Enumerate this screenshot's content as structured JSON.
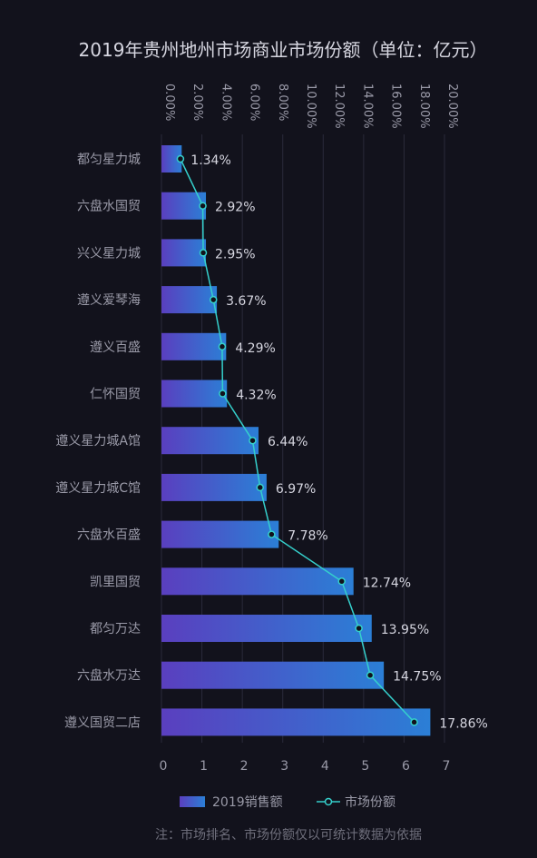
{
  "chart_data": {
    "type": "bar",
    "title": "2019年贵州地州市场商业市场份额（单位：亿元）",
    "note": "注：市场排名、市场份额仅以可统计数据为依据",
    "categories": [
      "都匀星力城",
      "六盘水国贸",
      "兴义星力城",
      "遵义爱琴海",
      "遵义百盛",
      "仁怀国贸",
      "遵义星力城A馆",
      "遵义星力城C馆",
      "六盘水百盛",
      "凯里国贸",
      "都匀万达",
      "六盘水万达",
      "遵义国贸二店"
    ],
    "series": [
      {
        "name": "2019销售额",
        "type": "bar",
        "axis": "bottom",
        "values": [
          0.5,
          1.1,
          1.1,
          1.37,
          1.6,
          1.62,
          2.4,
          2.6,
          2.9,
          4.75,
          5.2,
          5.5,
          6.65
        ]
      },
      {
        "name": "市场份额",
        "type": "line",
        "axis": "top",
        "values": [
          1.34,
          2.92,
          2.95,
          3.67,
          4.29,
          4.32,
          6.44,
          6.97,
          7.78,
          12.74,
          13.95,
          14.75,
          17.86
        ],
        "labels": [
          "1.34%",
          "2.92%",
          "2.95%",
          "3.67%",
          "4.29%",
          "4.32%",
          "6.44%",
          "6.97%",
          "7.78%",
          "12.74%",
          "13.95%",
          "14.75%",
          "17.86%"
        ]
      }
    ],
    "bottom_axis": {
      "min": 0,
      "max": 7,
      "ticks": [
        "0",
        "1",
        "2",
        "3",
        "4",
        "5",
        "6",
        "7"
      ]
    },
    "top_axis": {
      "min": 0,
      "max": 20,
      "ticks": [
        "0.00%",
        "2.00%",
        "4.00%",
        "6.00%",
        "8.00%",
        "10.00%",
        "12.00%",
        "14.00%",
        "16.00%",
        "18.00%",
        "20.00%"
      ]
    },
    "grid": true,
    "legend_position": "bottom",
    "colors": {
      "background": "#12121c",
      "bar_start": "#5a3fbf",
      "bar_end": "#2b7fd6",
      "line": "#35d0cc",
      "text": "#d6d6e0",
      "axis_text": "#9a9aa8",
      "grid": "#2a2a3a"
    }
  }
}
